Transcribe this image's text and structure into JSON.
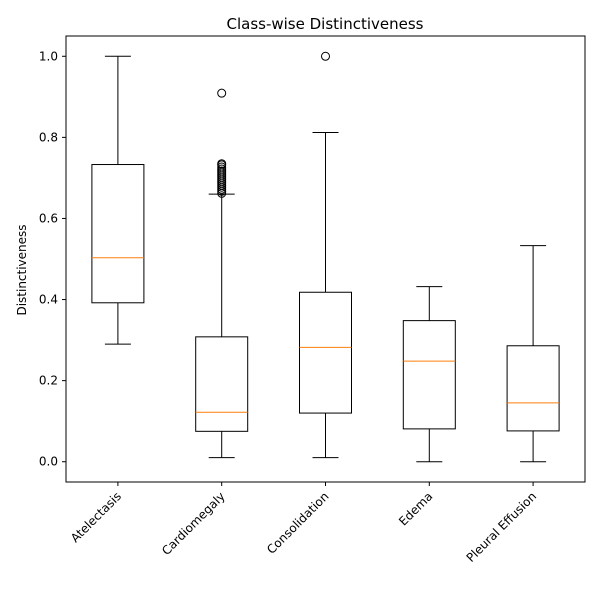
{
  "chart_data": {
    "type": "box",
    "title": "Class-wise Distinctiveness",
    "xlabel": "",
    "ylabel": "Distinctiveness",
    "ylim": [
      -0.05,
      1.05
    ],
    "yticks": [
      0.0,
      0.2,
      0.4,
      0.6,
      0.8,
      1.0
    ],
    "ytick_labels": [
      "0.0",
      "0.2",
      "0.4",
      "0.6",
      "0.8",
      "1.0"
    ],
    "grid": false,
    "colors": {
      "box": "#000000",
      "median": "#ff7f0e",
      "background": "#ffffff"
    },
    "categories": [
      "Atelectasis",
      "Cardiomegaly",
      "Consolidation",
      "Edema",
      "Pleural Effusion"
    ],
    "boxes": [
      {
        "whisker_low": 0.29,
        "q1": 0.392,
        "median": 0.503,
        "q3": 0.733,
        "whisker_high": 1.0,
        "outliers": []
      },
      {
        "whisker_low": 0.01,
        "q1": 0.075,
        "median": 0.122,
        "q3": 0.308,
        "whisker_high": 0.66,
        "outliers": [
          0.662,
          0.667,
          0.672,
          0.677,
          0.682,
          0.687,
          0.692,
          0.697,
          0.702,
          0.707,
          0.712,
          0.717,
          0.722,
          0.727,
          0.732,
          0.735,
          0.909
        ]
      },
      {
        "whisker_low": 0.01,
        "q1": 0.12,
        "median": 0.282,
        "q3": 0.418,
        "whisker_high": 0.812,
        "outliers": [
          1.0
        ]
      },
      {
        "whisker_low": 0.0,
        "q1": 0.081,
        "median": 0.248,
        "q3": 0.348,
        "whisker_high": 0.432,
        "outliers": []
      },
      {
        "whisker_low": 0.0,
        "q1": 0.076,
        "median": 0.145,
        "q3": 0.286,
        "whisker_high": 0.533,
        "outliers": []
      }
    ]
  }
}
